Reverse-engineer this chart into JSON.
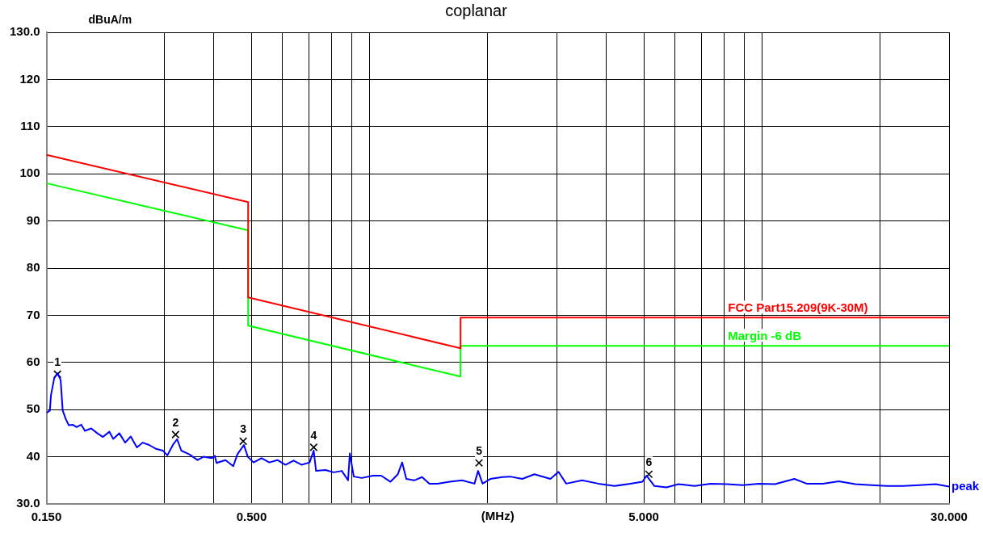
{
  "chart_data": {
    "type": "line",
    "title": "coplanar",
    "xlabel": "(MHz)",
    "ylabel": "dBuA/m",
    "log": "x",
    "grid": true,
    "legend": false,
    "marker": "none",
    "xlim": [
      0.15,
      30
    ],
    "ylim": [
      30,
      130
    ],
    "xticks": [
      {
        "value": 0.15,
        "label": "0.150"
      },
      {
        "value": 0.3,
        "label": null
      },
      {
        "value": 0.4,
        "label": null
      },
      {
        "value": 0.5,
        "label": "0.500"
      },
      {
        "value": 0.6,
        "label": null
      },
      {
        "value": 0.7,
        "label": null
      },
      {
        "value": 0.8,
        "label": null
      },
      {
        "value": 0.9,
        "label": null
      },
      {
        "value": 1,
        "label": null
      },
      {
        "value": 2,
        "label": null
      },
      {
        "value": 3,
        "label": null
      },
      {
        "value": 4,
        "label": null
      },
      {
        "value": 5,
        "label": "5.000"
      },
      {
        "value": 6,
        "label": null
      },
      {
        "value": 7,
        "label": null
      },
      {
        "value": 8,
        "label": null
      },
      {
        "value": 9,
        "label": null
      },
      {
        "value": 10,
        "label": null
      },
      {
        "value": 20,
        "label": null
      },
      {
        "value": 30,
        "label": "30.000"
      }
    ],
    "yticks": [
      {
        "value": 30,
        "label": "30.0"
      },
      40,
      50,
      60,
      70,
      80,
      90,
      100,
      110,
      120,
      {
        "value": 130,
        "label": "130.0"
      }
    ],
    "series": [
      {
        "name": "FCC Part15.209(9K-30M)",
        "color": "#ff0000",
        "x": [
          0.15,
          0.49,
          0.49,
          1.705,
          1.705,
          30
        ],
        "values": [
          104,
          94,
          73.8,
          63,
          69.5,
          69.5
        ]
      },
      {
        "name": "Margin -6 dB",
        "color": "#00ff00",
        "x": [
          0.15,
          0.49,
          0.49,
          1.705,
          1.705,
          30
        ],
        "values": [
          98,
          88,
          67.8,
          57,
          63.5,
          63.5
        ]
      },
      {
        "name": "peak",
        "color": "#0000ff",
        "x": [
          0.15,
          0.153,
          0.154,
          0.157,
          0.16,
          0.163,
          0.165,
          0.168,
          0.171,
          0.175,
          0.179,
          0.184,
          0.188,
          0.195,
          0.202,
          0.209,
          0.217,
          0.222,
          0.23,
          0.238,
          0.246,
          0.255,
          0.264,
          0.274,
          0.285,
          0.297,
          0.305,
          0.316,
          0.323,
          0.331,
          0.347,
          0.364,
          0.377,
          0.396,
          0.403,
          0.407,
          0.429,
          0.449,
          0.46,
          0.478,
          0.489,
          0.506,
          0.53,
          0.555,
          0.582,
          0.61,
          0.64,
          0.671,
          0.703,
          0.72,
          0.73,
          0.772,
          0.81,
          0.849,
          0.881,
          0.89,
          0.911,
          0.955,
          1.02,
          1.07,
          1.13,
          1.18,
          1.21,
          1.24,
          1.3,
          1.36,
          1.42,
          1.49,
          1.6,
          1.72,
          1.85,
          1.89,
          1.94,
          2.03,
          2.18,
          2.28,
          2.45,
          2.63,
          2.89,
          3.03,
          3.17,
          3.48,
          3.83,
          4.21,
          4.62,
          4.96,
          5.08,
          5.32,
          5.71,
          6.13,
          6.74,
          7.4,
          8.14,
          8.94,
          9.82,
          10.8,
          12.1,
          13.0,
          14.3,
          15.7,
          17.3,
          19.0,
          20.9,
          22.9,
          25.2,
          27.7,
          30.0
        ],
        "values": [
          49.3,
          49.8,
          53.0,
          56.7,
          57.7,
          56.3,
          49.8,
          48.0,
          46.7,
          46.8,
          46.3,
          46.8,
          45.5,
          46.0,
          45.0,
          44.2,
          45.3,
          43.8,
          45.0,
          43.0,
          44.3,
          42.0,
          43.0,
          42.5,
          41.7,
          41.3,
          40.3,
          42.7,
          43.7,
          41.3,
          40.5,
          39.3,
          40.0,
          39.7,
          40.2,
          38.7,
          39.3,
          38.0,
          40.5,
          42.5,
          40.0,
          38.8,
          39.7,
          38.8,
          39.3,
          38.3,
          39.2,
          38.3,
          38.8,
          41.3,
          37.0,
          37.2,
          36.7,
          37.0,
          35.0,
          40.7,
          35.8,
          35.5,
          36.0,
          36.0,
          34.7,
          36.3,
          38.8,
          35.3,
          35.0,
          35.7,
          34.3,
          34.3,
          34.7,
          35.0,
          34.3,
          37.0,
          34.3,
          35.3,
          35.7,
          35.8,
          35.3,
          36.3,
          35.3,
          36.8,
          34.3,
          35.0,
          34.3,
          33.8,
          34.3,
          34.7,
          36.0,
          33.8,
          33.5,
          34.2,
          33.8,
          34.3,
          34.2,
          34.0,
          34.3,
          34.2,
          35.3,
          34.3,
          34.3,
          34.8,
          34.2,
          34.0,
          33.8,
          33.8,
          34.0,
          34.2,
          33.7
        ]
      },
      {
        "type": "scatter",
        "marker": "cross",
        "color": "#000000",
        "x": [
          0.16,
          0.32,
          0.476,
          0.72,
          1.9,
          5.15
        ],
        "values": [
          57.5,
          44.7,
          43.3,
          42.0,
          38.7,
          36.3
        ]
      }
    ],
    "annotations": [
      {
        "text": "1",
        "x": 0.16,
        "y": 57.5
      },
      {
        "text": "2",
        "x": 0.32,
        "y": 44.7
      },
      {
        "text": "3",
        "x": 0.476,
        "y": 43.3
      },
      {
        "text": "4",
        "x": 0.72,
        "y": 42.0
      },
      {
        "text": "5",
        "x": 1.9,
        "y": 38.7
      },
      {
        "text": "6",
        "x": 5.15,
        "y": 36.3
      }
    ]
  }
}
